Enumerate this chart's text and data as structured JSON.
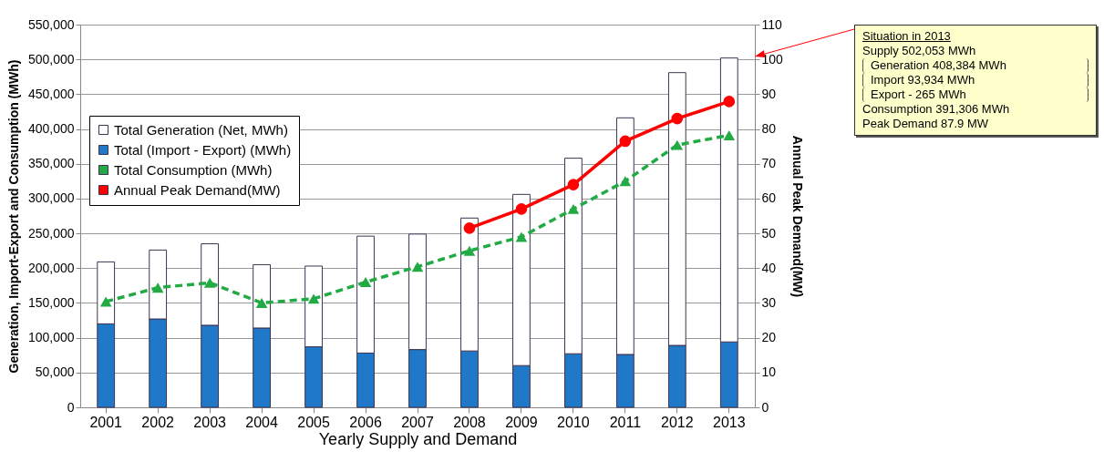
{
  "chart_data": {
    "type": "bar",
    "stacked": true,
    "xlabel": "Yearly Supply and Demand",
    "ylabel": "Generation, Import-Export and Consumption (MWh)",
    "y2label": "Annual Peak Demand(MW)",
    "categories": [
      "2001",
      "2002",
      "2003",
      "2004",
      "2005",
      "2006",
      "2007",
      "2008",
      "2009",
      "2010",
      "2011",
      "2012",
      "2013"
    ],
    "series": [
      {
        "name": "Total (Import - Export) (MWh)",
        "color": "#1f78c8",
        "values": [
          120000,
          127000,
          118000,
          114000,
          87000,
          78000,
          83000,
          81000,
          60000,
          77000,
          76000,
          89000,
          94000
        ]
      },
      {
        "name": "Total Generation (Net, MWh)",
        "color": "#ffffff",
        "values": [
          89000,
          99000,
          117000,
          91000,
          116000,
          168000,
          166000,
          191000,
          246000,
          281000,
          340000,
          392000,
          408000
        ]
      },
      {
        "name": "Total Consumption (MWh)",
        "type": "line",
        "color": "#22aa44",
        "marker": "triangle",
        "line_style": "dashed",
        "values": [
          152000,
          172000,
          179000,
          150000,
          156000,
          180000,
          202000,
          225000,
          245000,
          285000,
          325000,
          377000,
          391000
        ]
      },
      {
        "name": "Annual Peak Demand(MW)",
        "type": "line",
        "axis": "y2",
        "color": "#ff0000",
        "marker": "circle",
        "line_style": "solid",
        "values": [
          null,
          null,
          null,
          null,
          null,
          null,
          null,
          51.5,
          57,
          64,
          76.5,
          83,
          87.9
        ]
      }
    ],
    "ylim": [
      0,
      550000
    ],
    "yticks": [
      0,
      {
        "value": 50000,
        "label": "50,000"
      },
      {
        "value": 100000,
        "label": "100,000"
      },
      {
        "value": 150000,
        "label": "150,000"
      },
      {
        "value": 200000,
        "label": "200,000"
      },
      {
        "value": 250000,
        "label": "250,000"
      },
      {
        "value": 300000,
        "label": "300,000"
      },
      {
        "value": 350000,
        "label": "350,000"
      },
      {
        "value": 400000,
        "label": "400,000"
      },
      {
        "value": 450000,
        "label": "450,000"
      },
      {
        "value": 500000,
        "label": "500,000"
      },
      {
        "value": 550000,
        "label": "550,000"
      }
    ],
    "y2lim": [
      0,
      110
    ],
    "y2ticks": [
      0,
      10,
      20,
      30,
      40,
      50,
      60,
      70,
      80,
      90,
      100,
      110
    ],
    "grid": "y",
    "legend": "top left",
    "annotations": [
      "Situation in 2013",
      "Supply 502,053 MWh",
      "Generation 408,384 MWh",
      "Import 93,934 MWh",
      "Export - 265 MWh",
      "Consumption 391,306 MWh",
      "Peak Demand 87.9 MW"
    ]
  }
}
